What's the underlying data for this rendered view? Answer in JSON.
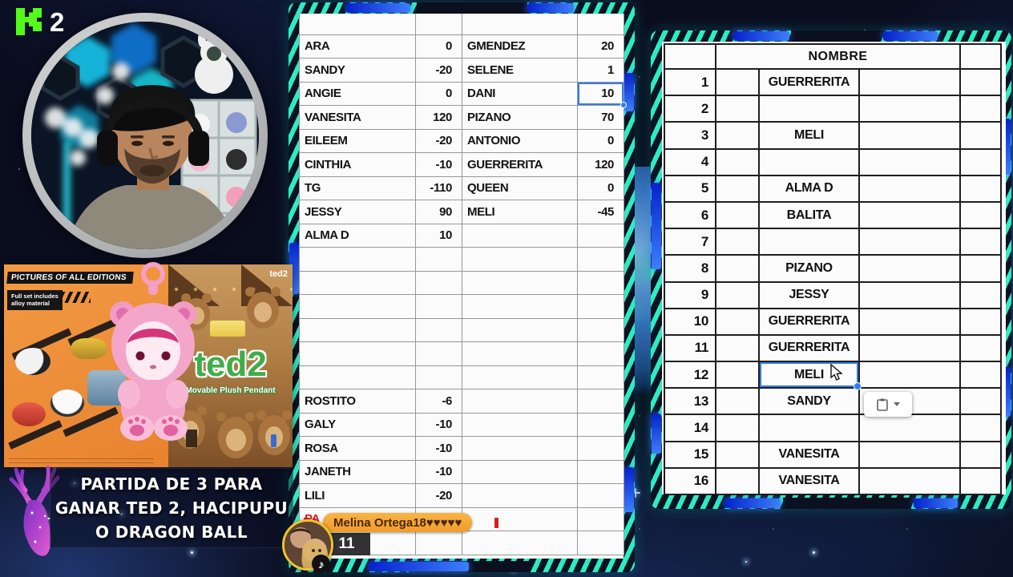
{
  "kick_overlay": {
    "brand": "kick-logo",
    "count": "2"
  },
  "promo": {
    "pictures_title": "PICTURES OF ALL EDITIONS",
    "full_set_note_line1": "Full set includes",
    "full_set_note_line2": "alloy material",
    "ted2_logo": "ted2",
    "subtitle": "Movable Plush Pendant",
    "corner_brand": "ted2"
  },
  "caption": {
    "line1": "PARTIDA DE 3 PARA",
    "line2": "GANAR TED 2, HACIPUPU",
    "line3": "O DRAGON BALL"
  },
  "scores_sheet": {
    "rows": [
      {
        "name": "ARA",
        "value": "0",
        "name2": "GMENDEZ",
        "value2": "20"
      },
      {
        "name": "SANDY",
        "value": "-20",
        "name2": "SELENE",
        "value2": "1"
      },
      {
        "name": "ANGIE",
        "value": "0",
        "name2": "DANI",
        "value2": "10"
      },
      {
        "name": "VANESITA",
        "value": "120",
        "name2": "PIZANO",
        "value2": "70"
      },
      {
        "name": "EILEEM",
        "value": "-20",
        "name2": "ANTONIO",
        "value2": "0"
      },
      {
        "name": "CINTHIA",
        "value": "-10",
        "name2": "GUERRERITA",
        "value2": "120"
      },
      {
        "name": "TG",
        "value": "-110",
        "name2": "QUEEN",
        "value2": "0"
      },
      {
        "name": "JESSY",
        "value": "90",
        "name2": "MELI",
        "value2": "-45"
      },
      {
        "name": "ALMA D",
        "value": "10",
        "name2": "",
        "value2": ""
      },
      {
        "name": "",
        "value": "",
        "name2": "",
        "value2": ""
      },
      {
        "name": "",
        "value": "",
        "name2": "",
        "value2": ""
      },
      {
        "name": "",
        "value": "",
        "name2": "",
        "value2": ""
      },
      {
        "name": "",
        "value": "",
        "name2": "",
        "value2": ""
      },
      {
        "name": "",
        "value": "",
        "name2": "",
        "value2": ""
      },
      {
        "name": "",
        "value": "",
        "name2": "",
        "value2": ""
      },
      {
        "name": "ROSTITO",
        "value": "-6",
        "name2": "",
        "value2": ""
      },
      {
        "name": "GALY",
        "value": "-10",
        "name2": "",
        "value2": ""
      },
      {
        "name": "ROSA",
        "value": "-10",
        "name2": "",
        "value2": ""
      },
      {
        "name": "JANETH",
        "value": "-10",
        "name2": "",
        "value2": ""
      },
      {
        "name": "LILI",
        "value": "-20",
        "name2": "",
        "value2": ""
      },
      {
        "name": "PA",
        "value": "",
        "name2": "",
        "value2": "",
        "red": true
      },
      {
        "name": "",
        "value": "",
        "name2": "",
        "value2": ""
      }
    ],
    "selected": {
      "row_index": 2,
      "column": "value2"
    }
  },
  "ranking_sheet": {
    "header": "NOMBRE",
    "rows": [
      {
        "n": "1",
        "name": "GUERRERITA"
      },
      {
        "n": "2",
        "name": ""
      },
      {
        "n": "3",
        "name": "MELI"
      },
      {
        "n": "4",
        "name": ""
      },
      {
        "n": "5",
        "name": "ALMA D"
      },
      {
        "n": "6",
        "name": "BALITA"
      },
      {
        "n": "7",
        "name": ""
      },
      {
        "n": "8",
        "name": "PIZANO"
      },
      {
        "n": "9",
        "name": "JESSY"
      },
      {
        "n": "10",
        "name": "GUERRERITA"
      },
      {
        "n": "11",
        "name": "GUERRERITA"
      },
      {
        "n": "12",
        "name": "MELI"
      },
      {
        "n": "13",
        "name": "SANDY"
      },
      {
        "n": "14",
        "name": ""
      },
      {
        "n": "15",
        "name": "VANESITA"
      },
      {
        "n": "16",
        "name": "VANESITA"
      }
    ],
    "selected": {
      "row_index": 11
    }
  },
  "chat_overlay": {
    "username": "Melina Ortega18♥♥♥♥♥",
    "gift_count": "11"
  },
  "colors": {
    "selection_blue": "#2f7bf0",
    "kick_green": "#53fc18",
    "frame_cyan": "#2bedc4",
    "frame_blue": "#3d7efc",
    "pill_orange": "#f3a93a",
    "red_text": "#d21f1f"
  }
}
